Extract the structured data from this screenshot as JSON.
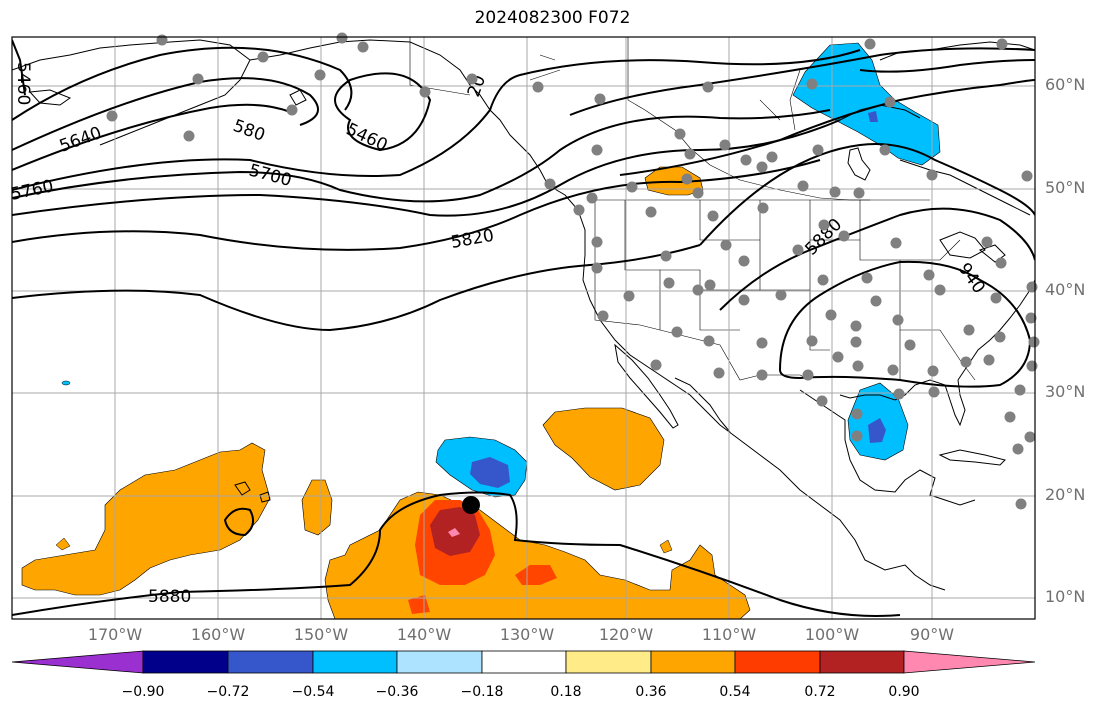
{
  "title": "2024082300 F072",
  "lon_ticks": [
    "170°W",
    "160°W",
    "150°W",
    "140°W",
    "130°W",
    "120°W",
    "110°W",
    "100°W",
    "90°W"
  ],
  "lat_ticks": [
    "60°N",
    "50°N",
    "40°N",
    "30°N",
    "20°N",
    "10°N"
  ],
  "contour_labels": [
    "5460",
    "5640",
    "580",
    "5460",
    "20",
    "5760",
    "5700",
    "5820",
    "5880",
    "5880",
    "940"
  ],
  "colorbar": {
    "ticks": [
      "−0.90",
      "−0.72",
      "−0.54",
      "−0.36",
      "−0.18",
      "0.18",
      "0.36",
      "0.54",
      "0.72",
      "0.90"
    ],
    "colors": {
      "under": "#9b30d0",
      "c1": "#00008b",
      "c2": "#3657cc",
      "c3": "#00bfff",
      "c4": "#aee3ff",
      "c5": "#ffffff",
      "c6": "#ffeb88",
      "c7": "#ffa500",
      "c8": "#ff3c00",
      "c9": "#b22222",
      "over": "#ff88b0"
    }
  },
  "colors": {
    "orange": "#ffa500",
    "red_orange": "#ff4500",
    "dark_red": "#b22222",
    "pink": "#ff88b0",
    "cyan": "#00bfff",
    "royal_blue": "#3657cc",
    "station_dot": "#808080",
    "storm_marker": "#000000"
  }
}
